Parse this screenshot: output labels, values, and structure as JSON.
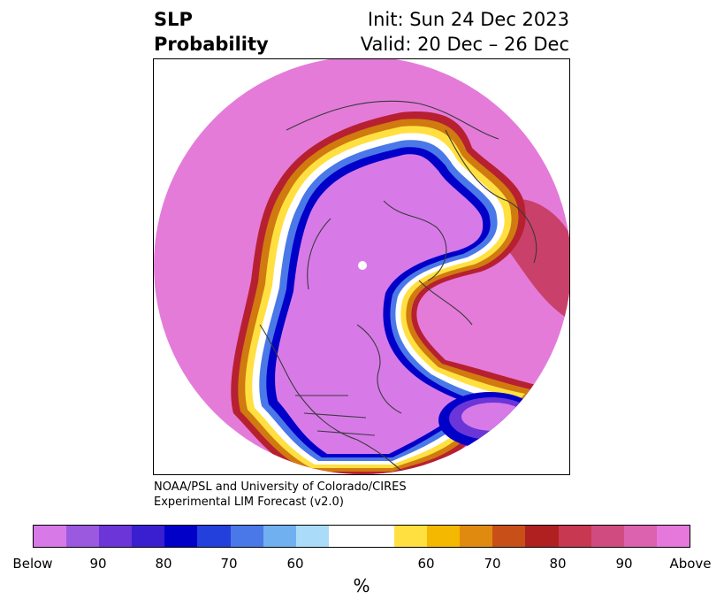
{
  "header": {
    "variable": "SLP",
    "product": "Probability",
    "init": "Init: Sun 24 Dec 2023",
    "valid": "Valid: 20 Dec – 26 Dec"
  },
  "credit": {
    "line1": "NOAA/PSL and University of Colorado/CIRES",
    "line2": "Experimental LIM Forecast (v2.0)"
  },
  "colorbar": {
    "unit": "%",
    "ticks": [
      "Below",
      "90",
      "80",
      "70",
      "60",
      "60",
      "70",
      "80",
      "90",
      "Above"
    ],
    "colors": [
      "#d77ae8",
      "#9b59e0",
      "#6b35d8",
      "#3a1fd0",
      "#0000c8",
      "#2440dc",
      "#4a78e8",
      "#70b0f0",
      "#aadcfa",
      "#ffffff",
      "#ffe040",
      "#f5b800",
      "#e08a10",
      "#c85018",
      "#b02020",
      "#c83850",
      "#d04c80",
      "#dc62b0",
      "#e678dc"
    ]
  },
  "map": {
    "projection": "north-polar-stereographic",
    "field": "sea-level pressure probability",
    "colors": {
      "above": "#e478dc",
      "below": "#d77ae8",
      "zero": "#ffffff",
      "coast": "#3a3a3a"
    }
  }
}
